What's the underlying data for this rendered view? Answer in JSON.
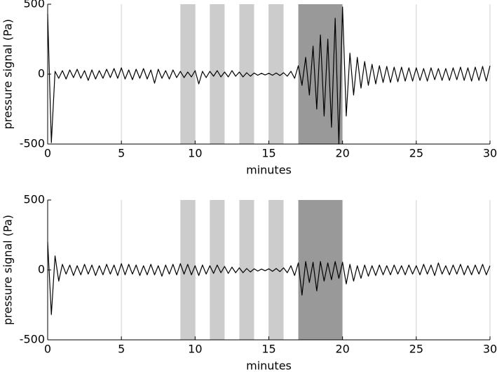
{
  "chart_data": [
    {
      "type": "line",
      "xlabel": "minutes",
      "ylabel": "pressure signal (Pa)",
      "xlim": [
        0,
        30
      ],
      "ylim": [
        -500,
        500
      ],
      "xticks": [
        0,
        5,
        10,
        15,
        20,
        25,
        30
      ],
      "yticks": [
        -500,
        0,
        500
      ],
      "grid": true,
      "bands": [
        {
          "start": 9,
          "end": 10,
          "color": "#cccccc"
        },
        {
          "start": 11,
          "end": 12,
          "color": "#cccccc"
        },
        {
          "start": 13,
          "end": 14,
          "color": "#cccccc"
        },
        {
          "start": 15,
          "end": 16,
          "color": "#cccccc"
        },
        {
          "start": 17,
          "end": 20,
          "color": "#999999"
        }
      ],
      "x": [
        0,
        0.25,
        0.5,
        0.75,
        1,
        1.25,
        1.5,
        1.75,
        2,
        2.25,
        2.5,
        2.75,
        3,
        3.25,
        3.5,
        3.75,
        4,
        4.25,
        4.5,
        4.75,
        5,
        5.25,
        5.5,
        5.75,
        6,
        6.25,
        6.5,
        6.75,
        7,
        7.25,
        7.5,
        7.75,
        8,
        8.25,
        8.5,
        8.75,
        9,
        9.25,
        9.5,
        9.75,
        10,
        10.25,
        10.5,
        10.75,
        11,
        11.25,
        11.5,
        11.75,
        12,
        12.25,
        12.5,
        12.75,
        13,
        13.25,
        13.5,
        13.75,
        14,
        14.25,
        14.5,
        14.75,
        15,
        15.25,
        15.5,
        15.75,
        16,
        16.25,
        16.5,
        16.75,
        17,
        17.25,
        17.5,
        17.75,
        18,
        18.25,
        18.5,
        18.75,
        19,
        19.25,
        19.5,
        19.75,
        20,
        20.25,
        20.5,
        20.75,
        21,
        21.25,
        21.5,
        21.75,
        22,
        22.25,
        22.5,
        22.75,
        23,
        23.25,
        23.5,
        23.75,
        24,
        24.25,
        24.5,
        24.75,
        25,
        25.25,
        25.5,
        25.75,
        26,
        26.25,
        26.5,
        26.75,
        27,
        27.25,
        27.5,
        27.75,
        28,
        28.25,
        28.5,
        28.75,
        29,
        29.25,
        29.5,
        29.75,
        30
      ],
      "series": [
        {
          "color": "#000000",
          "values": [
            430,
            -490,
            20,
            -30,
            25,
            -35,
            30,
            -25,
            35,
            -30,
            25,
            -45,
            30,
            -35,
            25,
            -30,
            35,
            -25,
            40,
            -30,
            45,
            -35,
            30,
            -40,
            35,
            -30,
            40,
            -35,
            30,
            -65,
            35,
            -30,
            25,
            -35,
            30,
            -25,
            20,
            -25,
            15,
            -20,
            25,
            -70,
            20,
            -25,
            20,
            -15,
            25,
            -20,
            15,
            -20,
            25,
            -15,
            15,
            -20,
            10,
            -15,
            8,
            -8,
            6,
            -6,
            6,
            -8,
            8,
            -10,
            10,
            -15,
            20,
            -30,
            60,
            -80,
            120,
            -150,
            200,
            -250,
            280,
            -300,
            250,
            -380,
            400,
            -500,
            480,
            -300,
            150,
            -150,
            120,
            -100,
            90,
            -80,
            70,
            -70,
            60,
            -60,
            55,
            -60,
            50,
            -55,
            50,
            -50,
            45,
            -50,
            45,
            -45,
            40,
            -50,
            45,
            -40,
            40,
            -45,
            40,
            -45,
            45,
            -40,
            50,
            -45,
            45,
            -50,
            50,
            -45,
            55,
            -50,
            60
          ]
        }
      ]
    },
    {
      "type": "line",
      "xlabel": "minutes",
      "ylabel": "pressure signal (Pa)",
      "xlim": [
        0,
        30
      ],
      "ylim": [
        -500,
        500
      ],
      "xticks": [
        0,
        5,
        10,
        15,
        20,
        25,
        30
      ],
      "yticks": [
        -500,
        0,
        500
      ],
      "grid": true,
      "bands": [
        {
          "start": 9,
          "end": 10,
          "color": "#cccccc"
        },
        {
          "start": 11,
          "end": 12,
          "color": "#cccccc"
        },
        {
          "start": 13,
          "end": 14,
          "color": "#cccccc"
        },
        {
          "start": 15,
          "end": 16,
          "color": "#cccccc"
        },
        {
          "start": 17,
          "end": 20,
          "color": "#999999"
        }
      ],
      "x": [
        0,
        0.25,
        0.5,
        0.75,
        1,
        1.25,
        1.5,
        1.75,
        2,
        2.25,
        2.5,
        2.75,
        3,
        3.25,
        3.5,
        3.75,
        4,
        4.25,
        4.5,
        4.75,
        5,
        5.25,
        5.5,
        5.75,
        6,
        6.25,
        6.5,
        6.75,
        7,
        7.25,
        7.5,
        7.75,
        8,
        8.25,
        8.5,
        8.75,
        9,
        9.25,
        9.5,
        9.75,
        10,
        10.25,
        10.5,
        10.75,
        11,
        11.25,
        11.5,
        11.75,
        12,
        12.25,
        12.5,
        12.75,
        13,
        13.25,
        13.5,
        13.75,
        14,
        14.25,
        14.5,
        14.75,
        15,
        15.25,
        15.5,
        15.75,
        16,
        16.25,
        16.5,
        16.75,
        17,
        17.25,
        17.5,
        17.75,
        18,
        18.25,
        18.5,
        18.75,
        19,
        19.25,
        19.5,
        19.75,
        20,
        20.25,
        20.5,
        20.75,
        21,
        21.25,
        21.5,
        21.75,
        22,
        22.25,
        22.5,
        22.75,
        23,
        23.25,
        23.5,
        23.75,
        24,
        24.25,
        24.5,
        24.75,
        25,
        25.25,
        25.5,
        25.75,
        26,
        26.25,
        26.5,
        26.75,
        27,
        27.25,
        27.5,
        27.75,
        28,
        28.25,
        28.5,
        28.75,
        29,
        29.25,
        29.5,
        29.75,
        30
      ],
      "series": [
        {
          "color": "#000000",
          "values": [
            200,
            -320,
            100,
            -80,
            40,
            -30,
            35,
            -40,
            30,
            -35,
            40,
            -30,
            35,
            -40,
            30,
            -35,
            40,
            -30,
            35,
            -40,
            45,
            -35,
            40,
            -30,
            35,
            -40,
            30,
            -35,
            40,
            -35,
            30,
            -45,
            35,
            -30,
            40,
            -35,
            45,
            -30,
            40,
            -35,
            30,
            -40,
            35,
            -30,
            30,
            -25,
            35,
            -20,
            25,
            -25,
            20,
            -20,
            15,
            -20,
            10,
            -15,
            8,
            -8,
            6,
            -6,
            8,
            -10,
            10,
            -12,
            15,
            -20,
            30,
            -40,
            50,
            -180,
            60,
            -90,
            55,
            -150,
            60,
            -80,
            50,
            -70,
            60,
            -60,
            55,
            -100,
            40,
            -80,
            30,
            -60,
            35,
            -45,
            30,
            -40,
            35,
            -35,
            30,
            -35,
            35,
            -30,
            30,
            -35,
            35,
            -30,
            30,
            -35,
            40,
            -30,
            35,
            -40,
            50,
            -30,
            30,
            -35,
            35,
            -30,
            40,
            -35,
            30,
            -35,
            35,
            -30,
            40,
            -35,
            30
          ]
        }
      ]
    }
  ]
}
